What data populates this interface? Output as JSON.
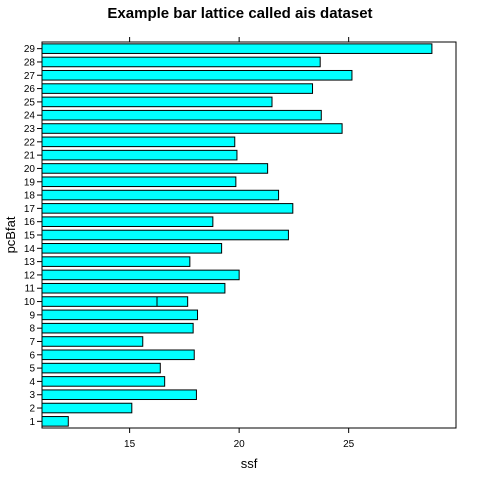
{
  "chart_data": {
    "type": "bar",
    "orientation": "horizontal",
    "title": "Example bar lattice called ais dataset",
    "xlabel": "ssf",
    "ylabel": "pcBfat",
    "categories": [
      "1",
      "2",
      "3",
      "4",
      "5",
      "6",
      "7",
      "8",
      "9",
      "10",
      "11",
      "12",
      "13",
      "14",
      "15",
      "16",
      "17",
      "18",
      "19",
      "20",
      "21",
      "22",
      "23",
      "24",
      "25",
      "26",
      "27",
      "28",
      "29"
    ],
    "values": [
      12.2,
      15.1,
      18.05,
      16.6,
      16.4,
      17.95,
      15.6,
      17.9,
      18.1,
      17.65,
      19.35,
      20.0,
      17.75,
      19.2,
      22.25,
      18.8,
      22.45,
      21.8,
      19.85,
      21.3,
      19.9,
      19.8,
      24.7,
      23.75,
      21.5,
      23.35,
      25.15,
      23.7,
      28.8
    ],
    "overlay_ticks": [
      {
        "category": "10",
        "value": 16.25
      }
    ],
    "xlim": [
      11.0,
      29.9
    ],
    "xticks": [
      15,
      20,
      25
    ],
    "bar_color": "#00ffff",
    "outline_color": "#000000",
    "grid": false
  }
}
